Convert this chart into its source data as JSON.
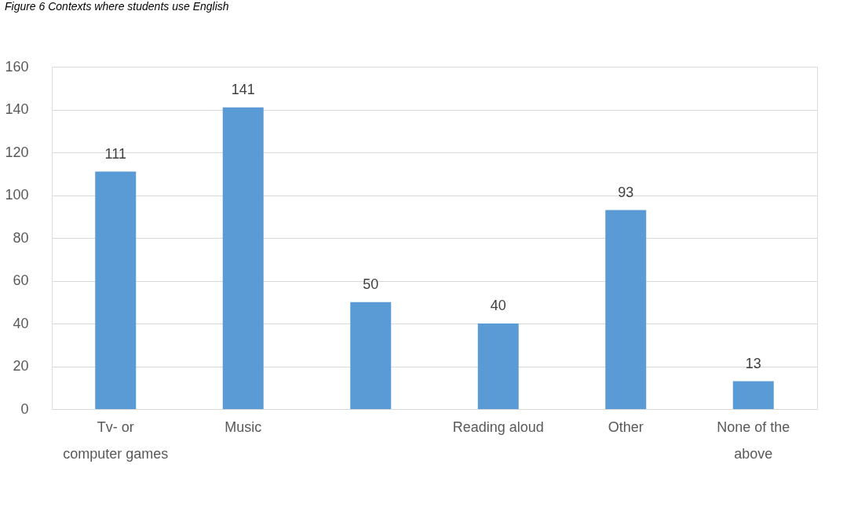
{
  "chart_data": {
    "type": "bar",
    "title": "Figure 6 Contexts where students use English",
    "categories": [
      "Tv- or computer games",
      "Music",
      null,
      "Reading aloud",
      "Other",
      "None of the above"
    ],
    "values": [
      111,
      141,
      50,
      40,
      93,
      13
    ],
    "color": "#5b9bd5",
    "ylim": [
      0,
      160
    ],
    "yticks": [
      0,
      20,
      40,
      60,
      80,
      100,
      120,
      140,
      160
    ],
    "grid": "y",
    "data_labels": true
  }
}
